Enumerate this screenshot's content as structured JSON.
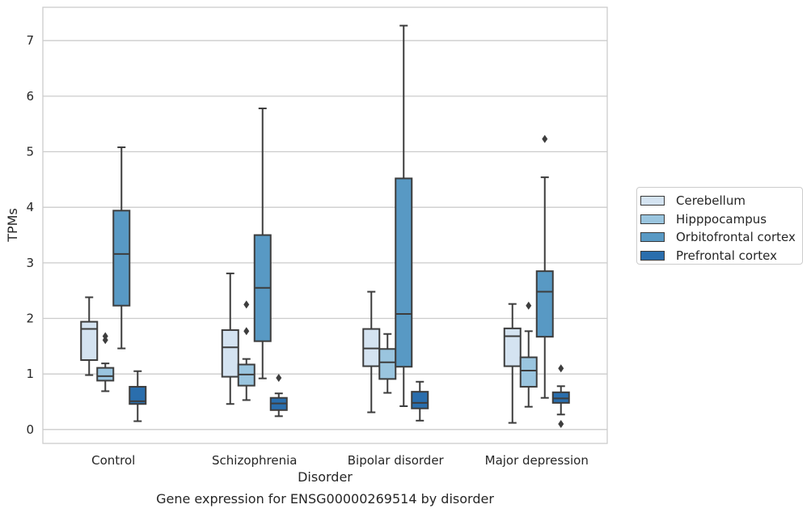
{
  "chart_data": {
    "type": "box",
    "title": "Gene expression for ENSG00000269514 by disorder",
    "xlabel": "Disorder",
    "ylabel": "TPMs",
    "ylim": [
      -0.25,
      7.6
    ],
    "yticks": [
      0,
      1,
      2,
      3,
      4,
      5,
      6,
      7
    ],
    "grid": "horizontal",
    "legend_position": "outside-right",
    "categories": [
      "Control",
      "Schizophrenia",
      "Bipolar disorder",
      "Major depression"
    ],
    "series": [
      {
        "name": "Cerebellum",
        "color": "#d4e3f1",
        "boxes": [
          {
            "whislo": 0.98,
            "q1": 1.25,
            "med": 1.81,
            "q3": 1.94,
            "whishi": 2.38,
            "fliers": []
          },
          {
            "whislo": 0.46,
            "q1": 0.95,
            "med": 1.48,
            "q3": 1.79,
            "whishi": 2.81,
            "fliers": []
          },
          {
            "whislo": 0.31,
            "q1": 1.14,
            "med": 1.46,
            "q3": 1.81,
            "whishi": 2.48,
            "fliers": []
          },
          {
            "whislo": 0.12,
            "q1": 1.14,
            "med": 1.68,
            "q3": 1.82,
            "whishi": 2.26,
            "fliers": []
          }
        ]
      },
      {
        "name": "Hipppocampus",
        "color": "#9ac5df",
        "boxes": [
          {
            "whislo": 0.69,
            "q1": 0.88,
            "med": 0.96,
            "q3": 1.11,
            "whishi": 1.19,
            "fliers": [
              1.68,
              1.61
            ]
          },
          {
            "whislo": 0.53,
            "q1": 0.79,
            "med": 0.99,
            "q3": 1.17,
            "whishi": 1.27,
            "fliers": [
              1.77,
              2.25
            ]
          },
          {
            "whislo": 0.66,
            "q1": 0.91,
            "med": 1.21,
            "q3": 1.45,
            "whishi": 1.72,
            "fliers": []
          },
          {
            "whislo": 0.41,
            "q1": 0.77,
            "med": 1.06,
            "q3": 1.3,
            "whishi": 1.77,
            "fliers": [
              2.23
            ]
          }
        ]
      },
      {
        "name": "Orbitofrontal cortex",
        "color": "#5899c4",
        "boxes": [
          {
            "whislo": 1.46,
            "q1": 2.23,
            "med": 3.16,
            "q3": 3.94,
            "whishi": 5.08,
            "fliers": []
          },
          {
            "whislo": 0.92,
            "q1": 1.59,
            "med": 2.55,
            "q3": 3.5,
            "whishi": 5.78,
            "fliers": []
          },
          {
            "whislo": 0.42,
            "q1": 1.13,
            "med": 2.08,
            "q3": 4.52,
            "whishi": 7.27,
            "fliers": []
          },
          {
            "whislo": 0.57,
            "q1": 1.67,
            "med": 2.48,
            "q3": 2.85,
            "whishi": 4.54,
            "fliers": [
              5.23
            ]
          }
        ]
      },
      {
        "name": "Prefrontal cortex",
        "color": "#2a6ead",
        "boxes": [
          {
            "whislo": 0.15,
            "q1": 0.46,
            "med": 0.51,
            "q3": 0.77,
            "whishi": 1.05,
            "fliers": []
          },
          {
            "whislo": 0.24,
            "q1": 0.35,
            "med": 0.47,
            "q3": 0.57,
            "whishi": 0.65,
            "fliers": [
              0.93
            ]
          },
          {
            "whislo": 0.16,
            "q1": 0.38,
            "med": 0.48,
            "q3": 0.68,
            "whishi": 0.86,
            "fliers": []
          },
          {
            "whislo": 0.27,
            "q1": 0.48,
            "med": 0.56,
            "q3": 0.67,
            "whishi": 0.78,
            "fliers": [
              1.1,
              0.1
            ]
          }
        ]
      }
    ]
  }
}
